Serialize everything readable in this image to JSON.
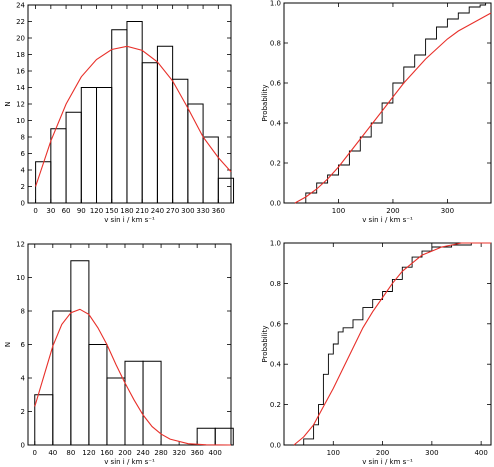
{
  "chart_data": [
    {
      "type": "bar",
      "panel": "top-left histogram",
      "xlabel": "v sin i / km s⁻¹",
      "ylabel": "N",
      "bin_width": 30,
      "bin_edges_start": 0,
      "values": [
        5,
        9,
        11,
        14,
        14,
        21,
        22,
        17,
        19,
        15,
        12,
        8,
        3
      ],
      "xlim": [
        -15,
        385
      ],
      "ylim": [
        0,
        24
      ],
      "xticks": [
        0,
        30,
        60,
        90,
        120,
        150,
        180,
        210,
        240,
        270,
        300,
        330,
        360
      ],
      "yticks": [
        0,
        2,
        4,
        6,
        8,
        10,
        12,
        14,
        16,
        18,
        20,
        22,
        24
      ],
      "fit_curve": {
        "color": "#e8302a",
        "points": [
          [
            0,
            2
          ],
          [
            30,
            7.5
          ],
          [
            60,
            12
          ],
          [
            90,
            15.3
          ],
          [
            120,
            17.4
          ],
          [
            150,
            18.6
          ],
          [
            180,
            19
          ],
          [
            210,
            18.5
          ],
          [
            240,
            17.1
          ],
          [
            270,
            14.8
          ],
          [
            300,
            11.5
          ],
          [
            330,
            8
          ],
          [
            360,
            5.5
          ],
          [
            385,
            3.8
          ]
        ]
      }
    },
    {
      "type": "line",
      "panel": "top-right cumulative",
      "xlabel": "v sin i / km s⁻¹",
      "ylabel": "Probability",
      "xlim": [
        0,
        380
      ],
      "ylim": [
        0,
        1.0
      ],
      "xticks": [
        100,
        200,
        300
      ],
      "yticks": [
        0.0,
        0.2,
        0.4,
        0.6,
        0.8,
        1.0
      ],
      "series": [
        {
          "color": "#000000",
          "x": [
            20,
            40,
            60,
            80,
            100,
            120,
            140,
            160,
            180,
            200,
            220,
            240,
            260,
            280,
            300,
            320,
            340,
            360,
            370
          ],
          "y": [
            0.0,
            0.05,
            0.1,
            0.14,
            0.19,
            0.26,
            0.33,
            0.4,
            0.5,
            0.6,
            0.68,
            0.74,
            0.82,
            0.88,
            0.92,
            0.95,
            0.98,
            0.99,
            1.0
          ]
        },
        {
          "color": "#e8302a",
          "x": [
            20,
            40,
            60,
            80,
            100,
            120,
            140,
            160,
            180,
            200,
            220,
            240,
            260,
            280,
            300,
            320,
            340,
            360,
            380
          ],
          "y": [
            0.0,
            0.03,
            0.07,
            0.12,
            0.18,
            0.25,
            0.32,
            0.39,
            0.46,
            0.53,
            0.6,
            0.66,
            0.72,
            0.77,
            0.82,
            0.86,
            0.89,
            0.92,
            0.95
          ]
        }
      ]
    },
    {
      "type": "bar",
      "panel": "bottom-left histogram",
      "xlabel": "v sin i / km s⁻¹",
      "ylabel": "N",
      "bin_width": 40,
      "bin_edges_start": 0,
      "values": [
        3,
        8,
        11,
        6,
        4,
        5,
        5,
        0,
        0,
        1,
        1
      ],
      "xlim": [
        -15,
        435
      ],
      "ylim": [
        0,
        12
      ],
      "xticks": [
        0,
        40,
        80,
        120,
        160,
        200,
        240,
        280,
        320,
        360,
        400
      ],
      "yticks": [
        0,
        2,
        4,
        6,
        8,
        10,
        12
      ],
      "fit_curve": {
        "color": "#e8302a",
        "points": [
          [
            0,
            2.3
          ],
          [
            20,
            4.1
          ],
          [
            40,
            5.9
          ],
          [
            60,
            7.2
          ],
          [
            80,
            7.9
          ],
          [
            100,
            8.1
          ],
          [
            120,
            7.8
          ],
          [
            140,
            7.0
          ],
          [
            160,
            6.0
          ],
          [
            180,
            4.8
          ],
          [
            200,
            3.7
          ],
          [
            220,
            2.7
          ],
          [
            240,
            1.8
          ],
          [
            260,
            1.1
          ],
          [
            280,
            0.65
          ],
          [
            300,
            0.35
          ],
          [
            340,
            0.08
          ],
          [
            380,
            0.01
          ],
          [
            435,
            0
          ]
        ]
      }
    },
    {
      "type": "line",
      "panel": "bottom-right cumulative",
      "xlabel": "v sin i / km s⁻¹",
      "ylabel": "Probability",
      "xlim": [
        0,
        420
      ],
      "ylim": [
        0,
        1.0
      ],
      "xticks": [
        100,
        200,
        300,
        400
      ],
      "yticks": [
        0.0,
        0.2,
        0.4,
        0.6,
        0.8,
        1.0
      ],
      "series": [
        {
          "color": "#000000",
          "x": [
            20,
            40,
            60,
            70,
            80,
            90,
            100,
            110,
            120,
            140,
            160,
            180,
            200,
            220,
            240,
            260,
            280,
            300,
            340,
            380,
            420
          ],
          "y": [
            0.0,
            0.03,
            0.1,
            0.2,
            0.35,
            0.45,
            0.5,
            0.56,
            0.58,
            0.62,
            0.68,
            0.72,
            0.76,
            0.82,
            0.88,
            0.93,
            0.96,
            0.98,
            0.99,
            1.0,
            1.0
          ]
        },
        {
          "color": "#e8302a",
          "x": [
            20,
            40,
            60,
            80,
            100,
            120,
            140,
            160,
            180,
            200,
            220,
            240,
            260,
            280,
            300,
            320,
            340,
            360,
            380,
            400,
            420
          ],
          "y": [
            0.0,
            0.04,
            0.1,
            0.19,
            0.28,
            0.38,
            0.48,
            0.58,
            0.66,
            0.73,
            0.8,
            0.86,
            0.9,
            0.94,
            0.96,
            0.98,
            0.99,
            1.0,
            1.0,
            1.0,
            1.0
          ]
        }
      ]
    }
  ]
}
